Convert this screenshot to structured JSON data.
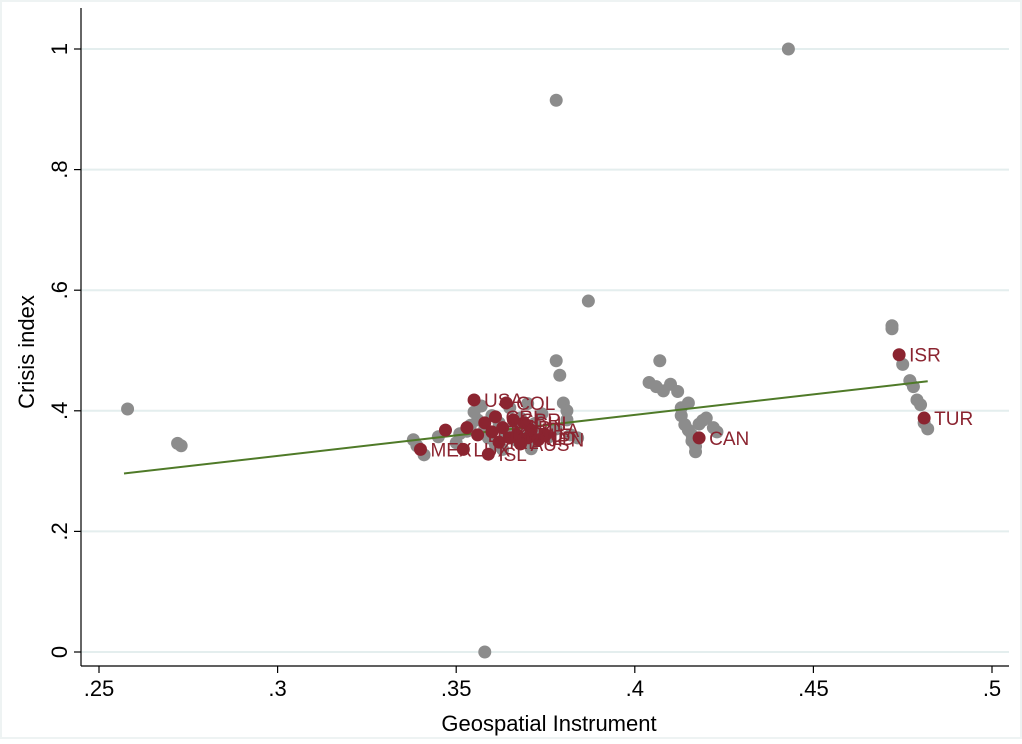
{
  "chart_data": {
    "type": "scatter",
    "xlabel": "Geospatial Instrument",
    "ylabel": "Crisis index",
    "xlim": [
      0.25,
      0.5
    ],
    "ylim": [
      0,
      1
    ],
    "x_ticks": [
      {
        "value": 0.25,
        "label": ".25"
      },
      {
        "value": 0.3,
        "label": ".3"
      },
      {
        "value": 0.35,
        "label": ".35"
      },
      {
        "value": 0.4,
        "label": ".4"
      },
      {
        "value": 0.45,
        "label": ".45"
      },
      {
        "value": 0.5,
        "label": ".5"
      }
    ],
    "y_ticks": [
      {
        "value": 0,
        "label": "0"
      },
      {
        "value": 0.2,
        "label": ".2"
      },
      {
        "value": 0.4,
        "label": ".4"
      },
      {
        "value": 0.6,
        "label": ".6"
      },
      {
        "value": 0.8,
        "label": ".8"
      },
      {
        "value": 1,
        "label": "1"
      }
    ],
    "grid": "horizontal",
    "colors": {
      "background_points": "#8c8c8c",
      "highlighted_points": "#8b2430",
      "label_text": "#8b2430",
      "fit_line": "#4f7a28",
      "gridline": "#e4eeee",
      "axis": "#000000"
    },
    "series": [
      {
        "role": "other",
        "points": [
          [
            0.258,
            0.403
          ],
          [
            0.272,
            0.346
          ],
          [
            0.273,
            0.342
          ],
          [
            0.338,
            0.352
          ],
          [
            0.339,
            0.342
          ],
          [
            0.341,
            0.327
          ],
          [
            0.345,
            0.357
          ],
          [
            0.35,
            0.347
          ],
          [
            0.351,
            0.362
          ],
          [
            0.353,
            0.366
          ],
          [
            0.354,
            0.376
          ],
          [
            0.355,
            0.398
          ],
          [
            0.356,
            0.385
          ],
          [
            0.357,
            0.408
          ],
          [
            0.358,
            0.37
          ],
          [
            0.359,
            0.355
          ],
          [
            0.36,
            0.392
          ],
          [
            0.361,
            0.343
          ],
          [
            0.362,
            0.38
          ],
          [
            0.363,
            0.336
          ],
          [
            0.364,
            0.36
          ],
          [
            0.365,
            0.405
          ],
          [
            0.366,
            0.374
          ],
          [
            0.367,
            0.351
          ],
          [
            0.368,
            0.388
          ],
          [
            0.369,
            0.364
          ],
          [
            0.37,
            0.412
          ],
          [
            0.371,
            0.337
          ],
          [
            0.372,
            0.379
          ],
          [
            0.373,
            0.36
          ],
          [
            0.374,
            0.395
          ],
          [
            0.376,
            0.357
          ],
          [
            0.378,
            0.37
          ],
          [
            0.38,
            0.413
          ],
          [
            0.381,
            0.4
          ],
          [
            0.381,
            0.385
          ],
          [
            0.382,
            0.36
          ],
          [
            0.384,
            0.355
          ],
          [
            0.358,
            0.0
          ],
          [
            0.378,
            0.915
          ],
          [
            0.387,
            0.582
          ],
          [
            0.378,
            0.483
          ],
          [
            0.379,
            0.459
          ],
          [
            0.443,
            1.0
          ],
          [
            0.404,
            0.447
          ],
          [
            0.406,
            0.44
          ],
          [
            0.407,
            0.483
          ],
          [
            0.408,
            0.433
          ],
          [
            0.41,
            0.444
          ],
          [
            0.412,
            0.432
          ],
          [
            0.413,
            0.405
          ],
          [
            0.413,
            0.392
          ],
          [
            0.414,
            0.377
          ],
          [
            0.415,
            0.413
          ],
          [
            0.415,
            0.368
          ],
          [
            0.416,
            0.36
          ],
          [
            0.416,
            0.35
          ],
          [
            0.417,
            0.341
          ],
          [
            0.417,
            0.332
          ],
          [
            0.418,
            0.378
          ],
          [
            0.419,
            0.384
          ],
          [
            0.42,
            0.388
          ],
          [
            0.422,
            0.372
          ],
          [
            0.423,
            0.365
          ],
          [
            0.472,
            0.541
          ],
          [
            0.472,
            0.536
          ],
          [
            0.475,
            0.477
          ],
          [
            0.477,
            0.45
          ],
          [
            0.478,
            0.44
          ],
          [
            0.479,
            0.418
          ],
          [
            0.48,
            0.41
          ],
          [
            0.481,
            0.38
          ],
          [
            0.482,
            0.37
          ]
        ]
      },
      {
        "role": "highlighted",
        "points": [
          [
            0.355,
            0.418
          ],
          [
            0.34,
            0.336
          ],
          [
            0.347,
            0.368
          ],
          [
            0.352,
            0.336
          ],
          [
            0.353,
            0.372
          ],
          [
            0.356,
            0.36
          ],
          [
            0.358,
            0.38
          ],
          [
            0.359,
            0.328
          ],
          [
            0.36,
            0.365
          ],
          [
            0.361,
            0.39
          ],
          [
            0.362,
            0.348
          ],
          [
            0.363,
            0.372
          ],
          [
            0.364,
            0.413
          ],
          [
            0.365,
            0.355
          ],
          [
            0.366,
            0.385
          ],
          [
            0.367,
            0.36
          ],
          [
            0.368,
            0.345
          ],
          [
            0.369,
            0.38
          ],
          [
            0.37,
            0.355
          ],
          [
            0.371,
            0.368
          ],
          [
            0.373,
            0.352
          ],
          [
            0.375,
            0.36
          ],
          [
            0.418,
            0.355
          ],
          [
            0.474,
            0.493
          ],
          [
            0.481,
            0.388
          ]
        ]
      }
    ],
    "annotations": [
      {
        "text": "USA",
        "x": 0.355,
        "y": 0.418
      },
      {
        "text": "COL",
        "x": 0.364,
        "y": 0.413
      },
      {
        "text": "CRI",
        "x": 0.361,
        "y": 0.39
      },
      {
        "text": "GBR",
        "x": 0.365,
        "y": 0.385
      },
      {
        "text": "ESP",
        "x": 0.363,
        "y": 0.372
      },
      {
        "text": "CHL",
        "x": 0.369,
        "y": 0.38
      },
      {
        "text": "DEU",
        "x": 0.366,
        "y": 0.36
      },
      {
        "text": "FRA",
        "x": 0.371,
        "y": 0.368
      },
      {
        "text": "ITA",
        "x": 0.36,
        "y": 0.365
      },
      {
        "text": "AUS",
        "x": 0.368,
        "y": 0.345
      },
      {
        "text": "NLD",
        "x": 0.37,
        "y": 0.355
      },
      {
        "text": "JPN",
        "x": 0.373,
        "y": 0.352
      },
      {
        "text": "DNK",
        "x": 0.356,
        "y": 0.36
      },
      {
        "text": "MEX",
        "x": 0.34,
        "y": 0.336
      },
      {
        "text": "LUX",
        "x": 0.352,
        "y": 0.336
      },
      {
        "text": "IRL",
        "x": 0.362,
        "y": 0.348
      },
      {
        "text": "ISL",
        "x": 0.359,
        "y": 0.328
      },
      {
        "text": "CAN",
        "x": 0.418,
        "y": 0.355
      },
      {
        "text": "ISR",
        "x": 0.474,
        "y": 0.493
      },
      {
        "text": "TUR",
        "x": 0.481,
        "y": 0.388
      }
    ],
    "fit_line": {
      "x": [
        0.257,
        0.482
      ],
      "y": [
        0.296,
        0.449
      ]
    }
  }
}
